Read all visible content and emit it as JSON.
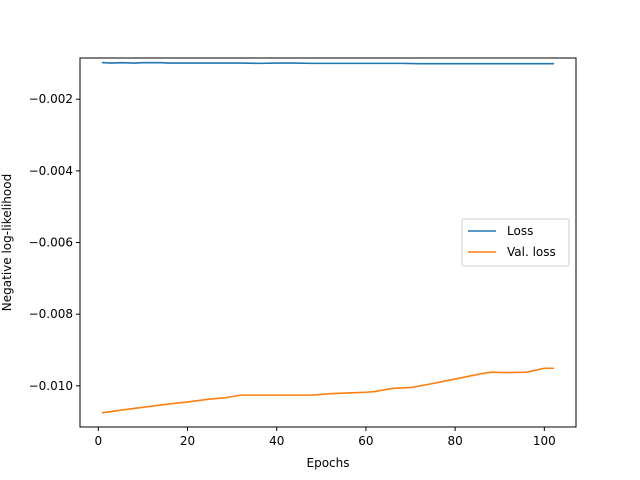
{
  "chart_data": {
    "type": "line",
    "title": "",
    "xlabel": "Epochs",
    "ylabel": "Negative log-likelihood",
    "xlim": [
      -4.1,
      107.1
    ],
    "ylim": [
      -0.01115,
      -0.00085
    ],
    "xticks": [
      0,
      20,
      40,
      60,
      80,
      100
    ],
    "xtick_labels": [
      "0",
      "20",
      "40",
      "60",
      "80",
      "100"
    ],
    "yticks": [
      -0.002,
      -0.004,
      -0.006,
      -0.008,
      -0.01
    ],
    "ytick_labels": [
      "−0.002",
      "−0.004",
      "−0.006",
      "−0.008",
      "−0.010"
    ],
    "grid": false,
    "legend": "center-right",
    "series": [
      {
        "name": "Loss",
        "color": "#1f77b4",
        "x": [
          1,
          3,
          5,
          8,
          10,
          14,
          16,
          18,
          20,
          24,
          28,
          32,
          36,
          40,
          44,
          48,
          52,
          56,
          60,
          64,
          68,
          72,
          76,
          80,
          84,
          88,
          92,
          96,
          100,
          102
        ],
        "y": [
          -0.00098,
          -0.00099,
          -0.00098,
          -0.00099,
          -0.00098,
          -0.00098,
          -0.00099,
          -0.00099,
          -0.00099,
          -0.00099,
          -0.00099,
          -0.00099,
          -0.001,
          -0.00099,
          -0.00099,
          -0.001,
          -0.001,
          -0.001,
          -0.001,
          -0.001,
          -0.001,
          -0.00101,
          -0.00101,
          -0.00101,
          -0.00101,
          -0.00101,
          -0.00101,
          -0.00101,
          -0.00101,
          -0.00101
        ]
      },
      {
        "name": "Val. loss",
        "color": "#ff7f0e",
        "x": [
          1,
          5,
          10,
          15,
          20,
          25,
          28,
          32,
          36,
          40,
          44,
          48,
          52,
          56,
          60,
          62,
          66,
          70,
          74,
          78,
          82,
          86,
          88,
          92,
          96,
          100,
          102
        ],
        "y": [
          -0.01075,
          -0.01068,
          -0.0106,
          -0.01052,
          -0.01045,
          -0.01037,
          -0.01034,
          -0.01026,
          -0.01026,
          -0.01026,
          -0.01026,
          -0.01026,
          -0.01022,
          -0.0102,
          -0.01018,
          -0.01016,
          -0.01007,
          -0.01005,
          -0.00996,
          -0.00986,
          -0.00976,
          -0.00966,
          -0.00962,
          -0.00963,
          -0.00962,
          -0.00951,
          -0.00951
        ]
      }
    ]
  }
}
